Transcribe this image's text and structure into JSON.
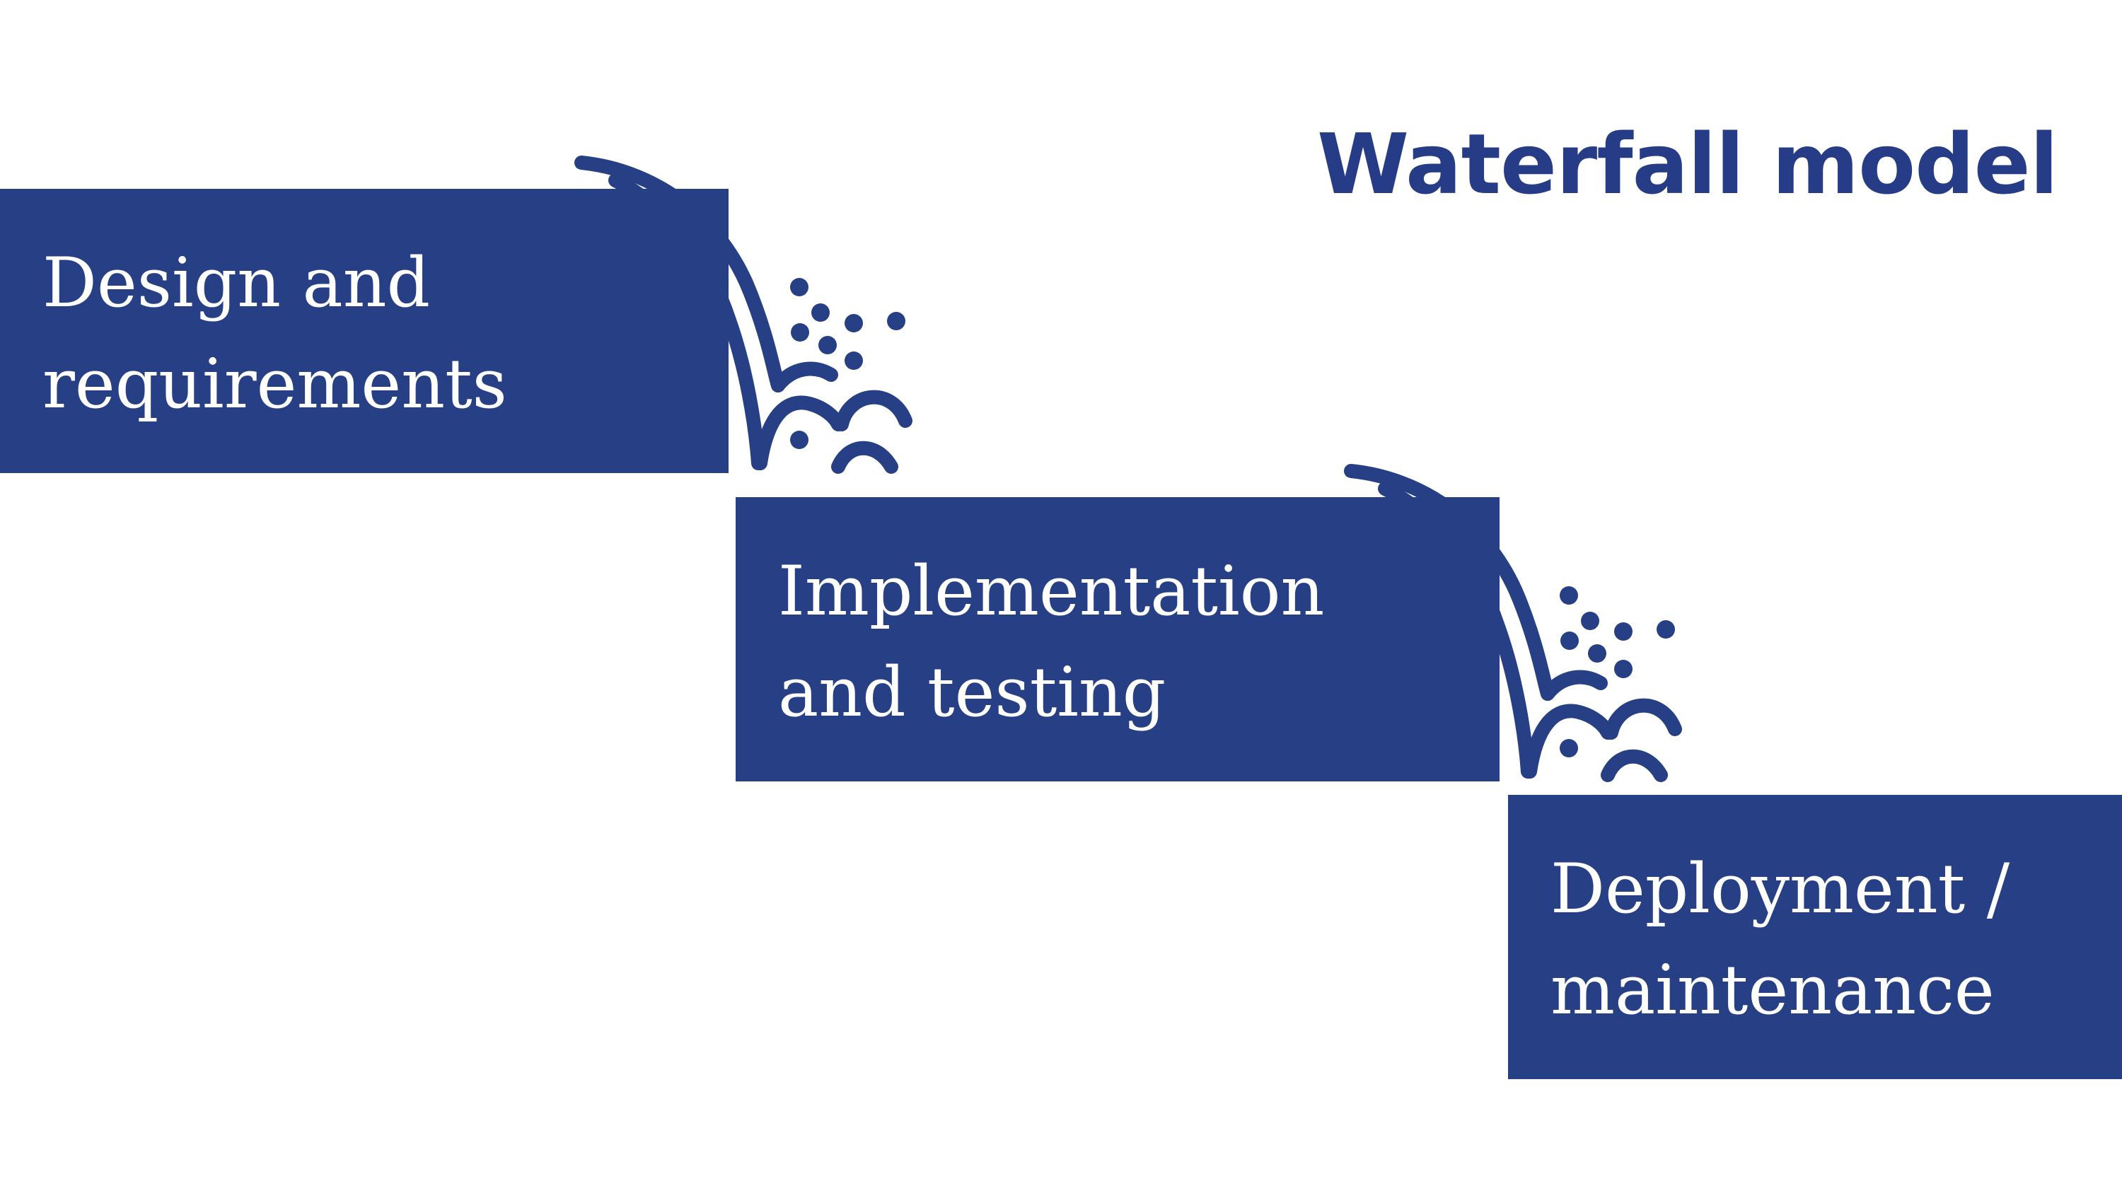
{
  "title": "Waterfall model",
  "accent_color": "#273f84",
  "stages": [
    {
      "label": "Design and\nrequirements"
    },
    {
      "label": "Implementation\nand testing"
    },
    {
      "label": "Deployment /\nmaintenance"
    }
  ],
  "icons": [
    "waterfall-icon",
    "waterfall-icon"
  ]
}
